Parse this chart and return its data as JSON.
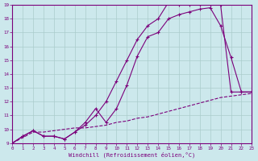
{
  "xlabel": "Windchill (Refroidissement éolien,°C)",
  "bg_color": "#cce8ec",
  "line_color": "#7b007b",
  "grid_color": "#aacccc",
  "xmin": 0,
  "xmax": 23,
  "ymin": 9,
  "ymax": 19,
  "series": [
    {
      "x": [
        0,
        1,
        2,
        3,
        4,
        5,
        6,
        7,
        8,
        9,
        10,
        11,
        12,
        13,
        14,
        15,
        16,
        17,
        18,
        19,
        20,
        21,
        22,
        23
      ],
      "y": [
        9.0,
        9.4,
        9.8,
        9.8,
        9.9,
        10.0,
        10.1,
        10.1,
        10.2,
        10.3,
        10.5,
        10.6,
        10.8,
        10.9,
        11.1,
        11.3,
        11.5,
        11.7,
        11.9,
        12.1,
        12.3,
        12.4,
        12.5,
        12.6
      ],
      "linestyle": "--",
      "marker": false
    },
    {
      "x": [
        0,
        1,
        2,
        3,
        4,
        5,
        6,
        7,
        8,
        9,
        10,
        11,
        12,
        13,
        14,
        15,
        16,
        17,
        18,
        19,
        20,
        21,
        22,
        23
      ],
      "y": [
        9.0,
        9.5,
        9.9,
        9.5,
        9.5,
        9.3,
        9.8,
        10.3,
        11.0,
        12.0,
        13.5,
        15.0,
        16.5,
        17.5,
        18.0,
        19.2,
        19.0,
        19.0,
        19.0,
        19.0,
        19.0,
        12.7,
        12.7,
        12.7
      ],
      "linestyle": "-",
      "marker": true
    },
    {
      "x": [
        0,
        1,
        2,
        3,
        4,
        5,
        6,
        7,
        8,
        9,
        10,
        11,
        12,
        13,
        14,
        15,
        16,
        17,
        18,
        19,
        20,
        21,
        22,
        23
      ],
      "y": [
        9.0,
        9.5,
        9.9,
        9.5,
        9.5,
        9.3,
        9.8,
        10.5,
        11.5,
        10.5,
        11.5,
        13.2,
        15.3,
        16.7,
        17.0,
        18.0,
        18.3,
        18.5,
        18.7,
        18.8,
        17.5,
        15.2,
        12.7,
        12.7
      ],
      "linestyle": "-",
      "marker": true
    }
  ]
}
